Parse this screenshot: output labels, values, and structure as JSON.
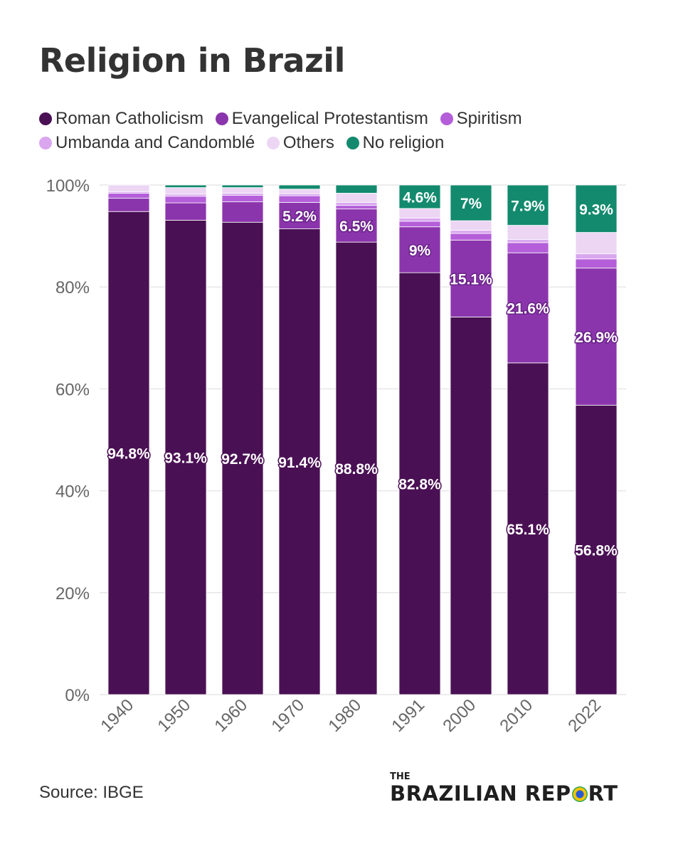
{
  "title": "Religion in Brazil",
  "legend": [
    {
      "label": "Roman Catholicism",
      "color": "#4a1054"
    },
    {
      "label": "Evangelical Protestantism",
      "color": "#8b35ad"
    },
    {
      "label": "Spiritism",
      "color": "#b45fd9"
    },
    {
      "label": "Umbanda and Candomblé",
      "color": "#d9a6ef"
    },
    {
      "label": "Others",
      "color": "#ecd6f4"
    },
    {
      "label": "No religion",
      "color": "#138a6e"
    }
  ],
  "source": "Source: IBGE",
  "logo": {
    "the": "THE",
    "name_part1": "BRAZILIAN REP",
    "name_part2": "RT"
  },
  "chart_data": {
    "type": "bar",
    "stacked": true,
    "title": "Religion in Brazil",
    "categories": [
      "1940",
      "1950",
      "1960",
      "1970",
      "1980",
      "1991",
      "2000",
      "2010",
      "2022"
    ],
    "ylim": [
      0,
      100
    ],
    "yticks": [
      "0%",
      "20%",
      "40%",
      "60%",
      "80%",
      "100%"
    ],
    "grid": true,
    "legend_position": "top",
    "series": [
      {
        "name": "Roman Catholicism",
        "color": "#4a1054",
        "values": [
          94.8,
          93.1,
          92.7,
          91.4,
          88.8,
          82.8,
          74.1,
          65.1,
          56.8
        ],
        "labels": [
          "94.8%",
          "93.1%",
          "92.7%",
          "91.4%",
          "88.8%",
          "82.8%",
          "",
          "65.1%",
          "56.8%"
        ]
      },
      {
        "name": "Evangelical Protestantism",
        "color": "#8b35ad",
        "values": [
          2.6,
          3.4,
          4.0,
          5.2,
          6.5,
          9.0,
          15.1,
          21.6,
          26.9
        ],
        "labels": [
          "",
          "",
          "",
          "5.2%",
          "6.5%",
          "9%",
          "15.1%",
          "21.6%",
          "26.9%"
        ]
      },
      {
        "name": "Spiritism",
        "color": "#b45fd9",
        "values": [
          1.0,
          1.3,
          1.3,
          1.3,
          0.7,
          1.1,
          1.3,
          2.0,
          1.8
        ],
        "labels": [
          "",
          "",
          "",
          "",
          "",
          "",
          "",
          "",
          ""
        ]
      },
      {
        "name": "Umbanda and Candomblé",
        "color": "#d9a6ef",
        "values": [
          0.3,
          0.4,
          0.4,
          0.4,
          0.6,
          0.6,
          0.6,
          0.6,
          1.0
        ],
        "labels": [
          "",
          "",
          "",
          "",
          "",
          "",
          "",
          "",
          ""
        ]
      },
      {
        "name": "Others",
        "color": "#ecd6f4",
        "values": [
          1.3,
          1.3,
          1.1,
          0.9,
          1.8,
          1.9,
          1.9,
          2.8,
          4.2
        ],
        "labels": [
          "",
          "",
          "",
          "",
          "",
          "",
          "",
          "",
          ""
        ]
      },
      {
        "name": "No religion",
        "color": "#138a6e",
        "values": [
          0.0,
          0.5,
          0.5,
          0.8,
          1.6,
          4.6,
          7.0,
          7.9,
          9.3
        ],
        "labels": [
          "",
          "",
          "",
          "",
          "",
          "4.6%",
          "7%",
          "7.9%",
          "9.3%"
        ]
      }
    ]
  }
}
